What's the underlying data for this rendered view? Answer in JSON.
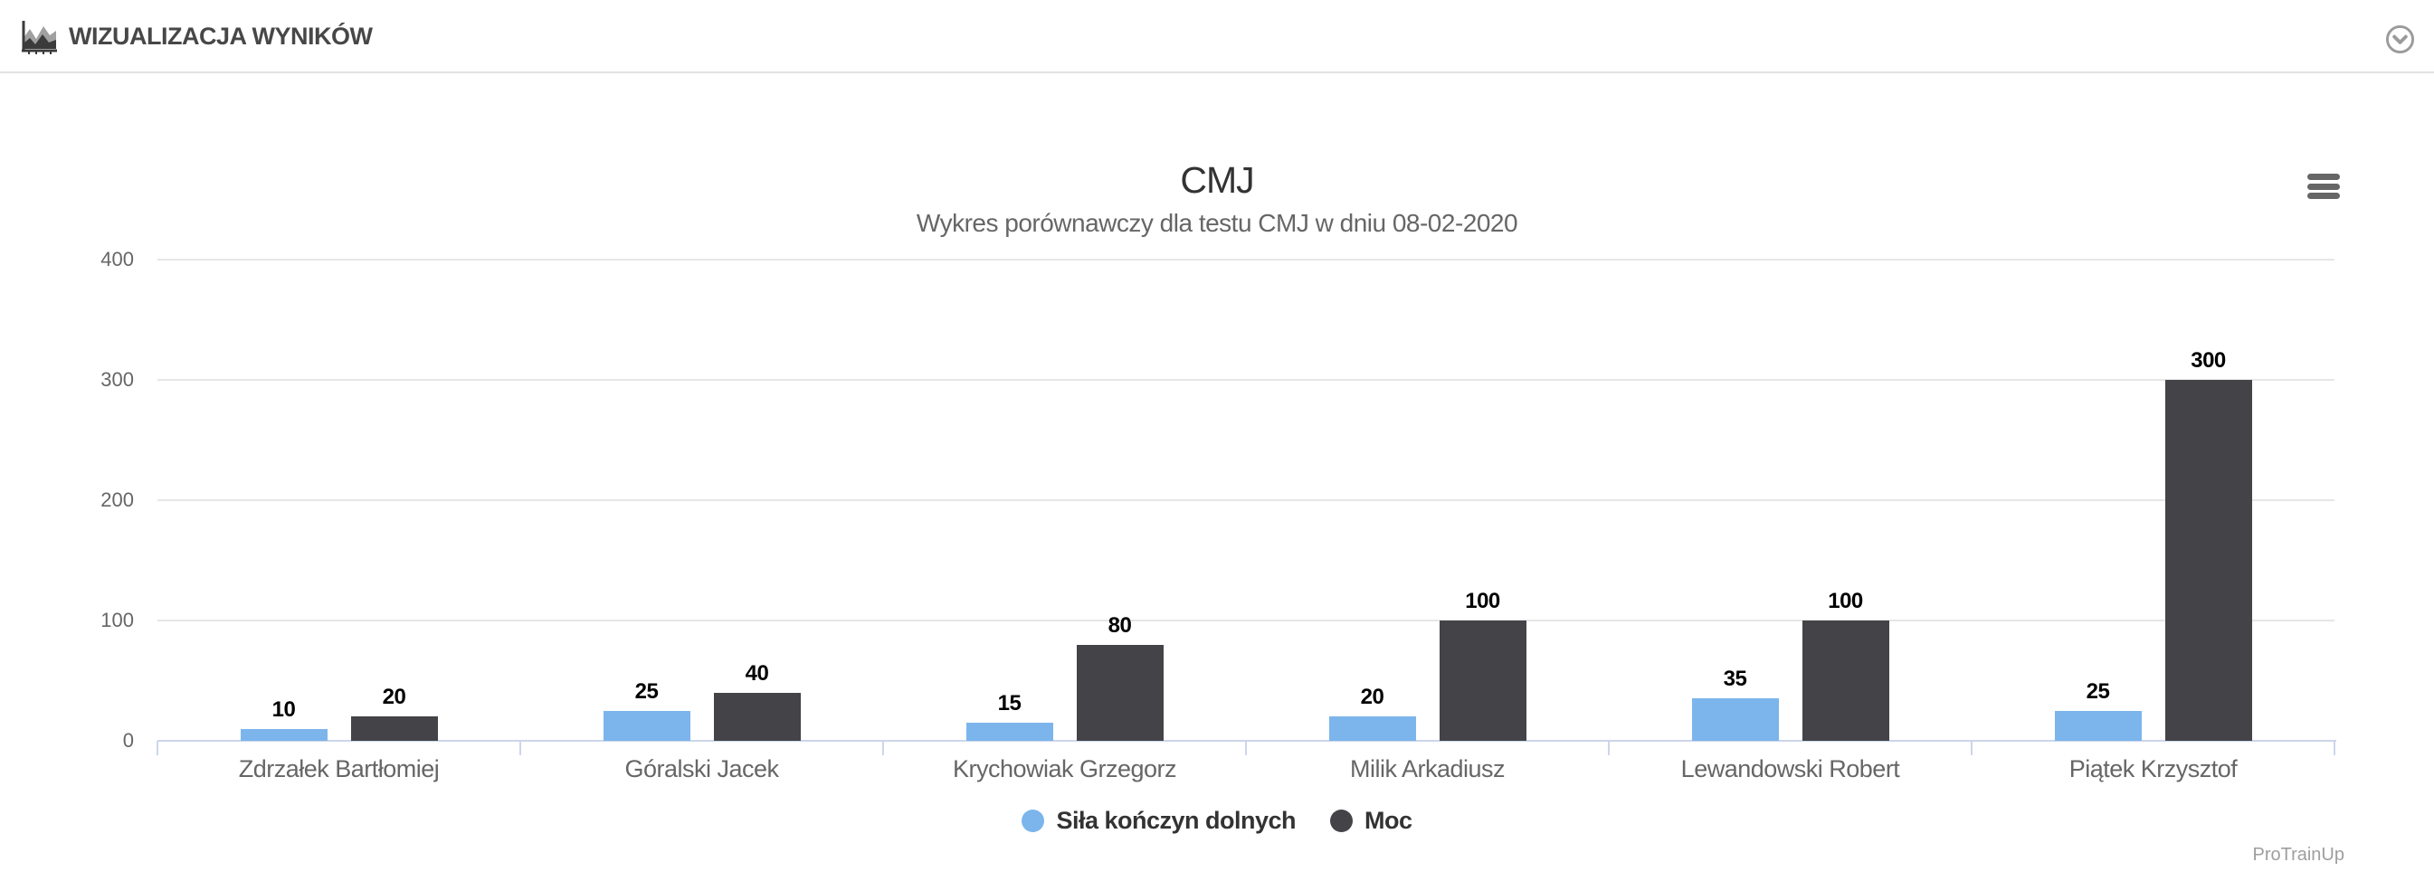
{
  "header": {
    "title": "WIZUALIZACJA WYNIKÓW"
  },
  "icons": {
    "header_icon": "area-chart-icon",
    "collapse_icon": "chevron-down-circle-icon",
    "context_menu_icon": "hamburger-menu-icon"
  },
  "chart": {
    "title": "CMJ",
    "subtitle": "Wykres porównawczy dla testu CMJ w dniu 08-02-2020",
    "credit": "ProTrainUp"
  },
  "chart_data": {
    "type": "bar",
    "title": "CMJ",
    "subtitle": "Wykres porównawczy dla testu CMJ w dniu 08-02-2020",
    "categories": [
      "Zdrzałek Bartłomiej",
      "Góralski Jacek",
      "Krychowiak Grzegorz",
      "Milik Arkadiusz",
      "Lewandowski Robert",
      "Piątek Krzysztof"
    ],
    "series": [
      {
        "name": "Siła kończyn dolnych",
        "color": "#7cb5ec",
        "values": [
          10,
          25,
          15,
          20,
          35,
          25
        ]
      },
      {
        "name": "Moc",
        "color": "#434348",
        "values": [
          20,
          40,
          80,
          100,
          100,
          300
        ]
      }
    ],
    "xlabel": "",
    "ylabel": "",
    "ylim": [
      0,
      400
    ],
    "yticks": [
      0,
      100,
      200,
      300,
      400
    ],
    "grid": true,
    "legend_position": "bottom",
    "grid_color": "#e6e6e6",
    "axis_line_color": "#ccd6eb",
    "data_label_color": "#000000",
    "axis_label_color": "#666666"
  }
}
